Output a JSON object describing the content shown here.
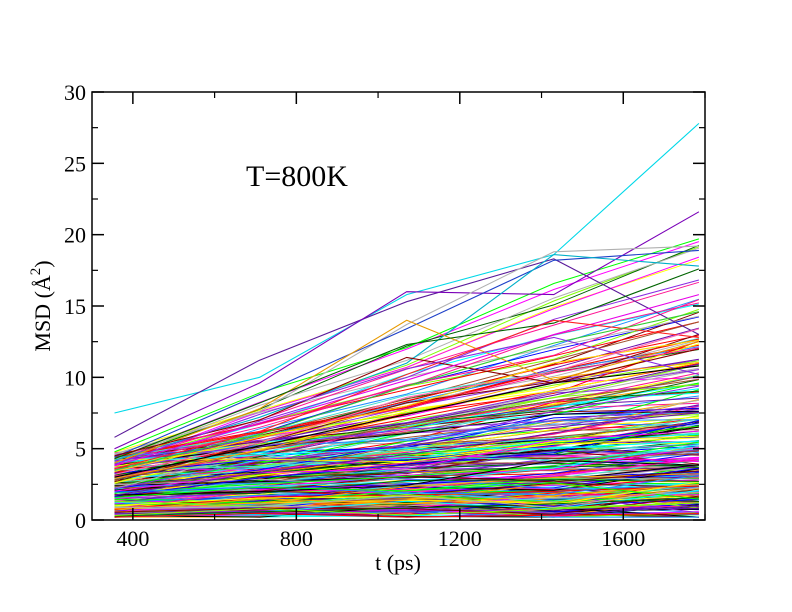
{
  "chart_data": {
    "type": "line",
    "title": "",
    "annotation": "T=800K",
    "xlabel": "t (ps)",
    "ylabel_main": "MSD (",
    "ylabel_unit": "Å",
    "ylabel_exp": "2",
    "ylabel_close": ")",
    "xlim": [
      300,
      1800
    ],
    "ylim": [
      0,
      30
    ],
    "xticks": [
      400,
      800,
      1200,
      1600
    ],
    "xtick_labels": [
      "400",
      "800",
      "1200",
      "1600"
    ],
    "yticks": [
      0,
      5,
      10,
      15,
      20,
      25,
      30
    ],
    "ytick_labels": [
      "0",
      "5",
      "10",
      "15",
      "20",
      "25",
      "30"
    ],
    "x": [
      355,
      710,
      1070,
      1430,
      1785
    ],
    "grid": false,
    "legend": "none",
    "highlighted_series": [
      {
        "color": "#00d8e8",
        "values": [
          7.5,
          10.0,
          15.8,
          18.6,
          27.8
        ]
      },
      {
        "color": "#5a1a9a",
        "values": [
          5.8,
          11.2,
          15.3,
          18.3,
          13.0
        ]
      },
      {
        "color": "#7a00b8",
        "values": [
          5.0,
          9.6,
          16.0,
          15.8,
          21.6
        ]
      },
      {
        "color": "#b0b0b0",
        "values": [
          4.6,
          7.6,
          13.7,
          18.8,
          19.2
        ]
      },
      {
        "color": "#1e40c8",
        "values": [
          4.4,
          8.8,
          13.4,
          18.2,
          18.9
        ]
      },
      {
        "color": "#00b0c8",
        "values": [
          4.2,
          7.2,
          11.0,
          18.6,
          17.8
        ]
      },
      {
        "color": "#e89a00",
        "values": [
          4.0,
          7.8,
          14.0,
          9.8,
          12.5
        ]
      },
      {
        "color": "#006400",
        "values": [
          4.3,
          8.2,
          12.3,
          13.8,
          17.6
        ]
      },
      {
        "color": "#8b0000",
        "values": [
          4.5,
          7.0,
          11.4,
          9.6,
          12.0
        ]
      },
      {
        "color": "#e800e8",
        "values": [
          3.8,
          6.8,
          9.8,
          13.0,
          15.8
        ]
      },
      {
        "color": "#ff2020",
        "values": [
          3.6,
          6.2,
          10.2,
          14.0,
          12.8
        ]
      },
      {
        "color": "#32cd32",
        "values": [
          3.5,
          6.0,
          9.4,
          12.4,
          14.6
        ]
      },
      {
        "color": "#8a2be2",
        "values": [
          3.9,
          7.4,
          10.6,
          12.8,
          10.2
        ]
      },
      {
        "color": "#ffd700",
        "values": [
          3.4,
          5.8,
          8.0,
          11.0,
          12.6
        ]
      },
      {
        "color": "#ff69b4",
        "values": [
          3.2,
          5.4,
          8.6,
          10.4,
          13.4
        ]
      },
      {
        "color": "#000000",
        "values": [
          3.0,
          5.2,
          7.4,
          9.6,
          10.8
        ]
      }
    ],
    "background_ensemble": {
      "count": 300,
      "palette": [
        "#000000",
        "#ff0000",
        "#00ff00",
        "#0000ff",
        "#ffff00",
        "#a0522d",
        "#b0b0b0",
        "#8a2be2",
        "#00ffff",
        "#ff00ff",
        "#ffa500",
        "#6a0dad",
        "#800000",
        "#40e0d0",
        "#006400",
        "#ff1493",
        "#1e90ff",
        "#7fff00"
      ]
    }
  }
}
